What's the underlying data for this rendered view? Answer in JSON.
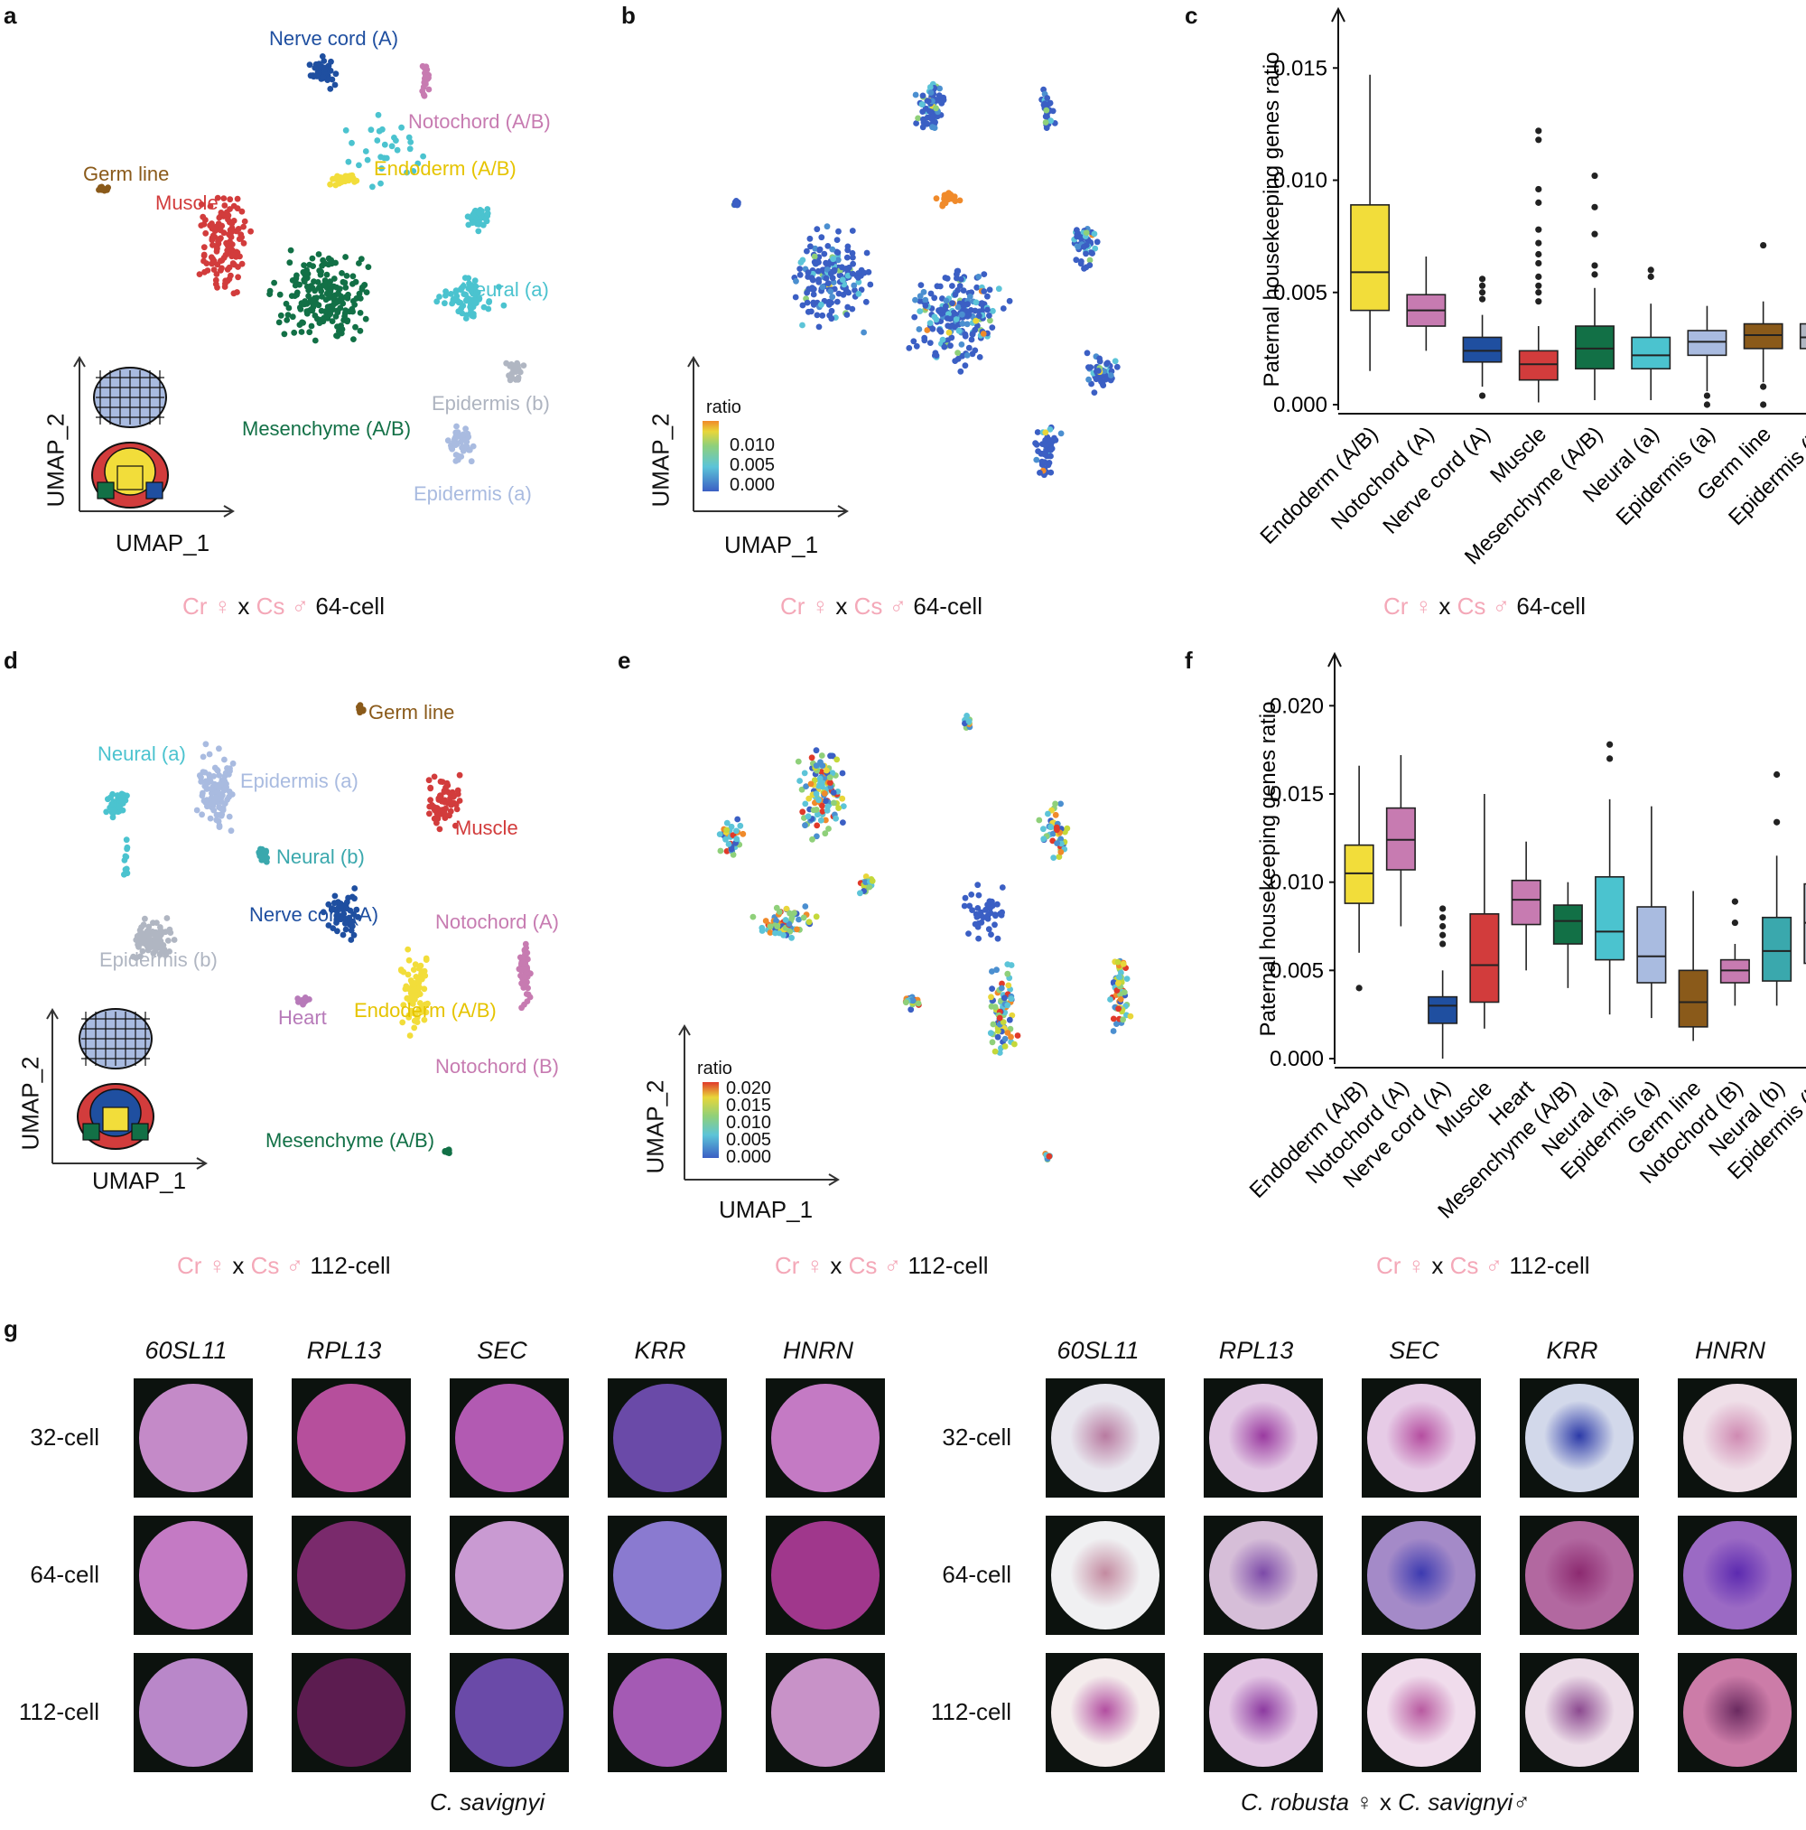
{
  "panels": {
    "a": "a",
    "b": "b",
    "c": "c",
    "d": "d",
    "e": "e",
    "f": "f",
    "g": "g"
  },
  "umap_axes": {
    "x": "UMAP_1",
    "y": "UMAP_2"
  },
  "captions": {
    "cr": "Cr",
    "female": "♀",
    "x": "x",
    "cs": "Cs",
    "male": "♂",
    "stage_64": "64-cell",
    "stage_112": "112-cell"
  },
  "panel_a_labels": {
    "nerve_cord": "Nerve cord (A)",
    "notochord": "Notochord (A/B)",
    "germ_line": "Germ line",
    "endoderm": "Endoderm (A/B)",
    "muscle": "Muscle",
    "neural_a": "Neural (a)",
    "mesenchyme": "Mesenchyme (A/B)",
    "epidermis_b": "Epidermis (b)",
    "epidermis_a": "Epidermis (a)"
  },
  "panel_d_labels": {
    "germ_line": "Germ line",
    "neural_a": "Neural (a)",
    "epidermis_a": "Epidermis (a)",
    "muscle": "Muscle",
    "neural_b": "Neural (b)",
    "nerve_cord": "Nerve cord (A)",
    "notochord_a": "Notochord (A)",
    "epidermis_b": "Epidermis (b)",
    "heart": "Heart",
    "endoderm": "Endoderm (A/B)",
    "notochord_b": "Notochord (B)",
    "mesenchyme": "Mesenchyme (A/B)"
  },
  "colorbar_b": {
    "title": "ratio",
    "ticks": [
      "0.010",
      "0.005",
      "0.000"
    ]
  },
  "colorbar_e": {
    "title": "ratio",
    "ticks": [
      "0.020",
      "0.015",
      "0.010",
      "0.005",
      "0.000"
    ]
  },
  "colors": {
    "endoderm": "#f2dd3a",
    "notochord": "#c77bb1",
    "nerve_cord": "#1f4fa0",
    "muscle": "#d23c3c",
    "mesenchyme": "#127046",
    "neural_a": "#4bc3cf",
    "neural_b": "#3aa8ad",
    "epidermis_a": "#a9bbe0",
    "epidermis_b": "#b0b6c2",
    "germ_line": "#8a5a1a",
    "heart": "#b77ab9"
  },
  "chart_data": [
    {
      "type": "box",
      "panel": "c",
      "ylabel": "Paternal housekeeping genes ratio",
      "ylim": [
        0,
        0.0165
      ],
      "yticks": [
        "0.000",
        "0.005",
        "0.010",
        "0.015"
      ],
      "categories": [
        "Endoderm (A/B)",
        "Notochord (A)",
        "Nerve cord (A)",
        "Muscle",
        "Mesenchyme (A/B)",
        "Neural (a)",
        "Epidermis (a)",
        "Germ line",
        "Epidermis (b)"
      ],
      "colors": [
        "#f2dd3a",
        "#c77bb1",
        "#1f4fa0",
        "#d23c3c",
        "#127046",
        "#4bc3cf",
        "#a9bbe0",
        "#8a5a1a",
        "#b0b6c2"
      ],
      "boxes": [
        {
          "min": 0.0015,
          "q1": 0.0042,
          "median": 0.0059,
          "q3": 0.0089,
          "max": 0.0147,
          "outliers": []
        },
        {
          "min": 0.0024,
          "q1": 0.0035,
          "median": 0.0042,
          "q3": 0.0049,
          "max": 0.0066,
          "outliers": []
        },
        {
          "min": 0.0008,
          "q1": 0.0019,
          "median": 0.0024,
          "q3": 0.003,
          "max": 0.004,
          "outliers": [
            0.0056,
            0.0053,
            0.005,
            0.0047,
            0.0004
          ]
        },
        {
          "min": 0.0001,
          "q1": 0.0011,
          "median": 0.0018,
          "q3": 0.0024,
          "max": 0.0035,
          "outliers": [
            0.0122,
            0.0118,
            0.0096,
            0.009,
            0.0078,
            0.0072,
            0.0067,
            0.0063,
            0.0057,
            0.0053,
            0.005,
            0.0046
          ]
        },
        {
          "min": 0.0002,
          "q1": 0.0016,
          "median": 0.0025,
          "q3": 0.0035,
          "max": 0.0052,
          "outliers": [
            0.0102,
            0.0088,
            0.0076,
            0.0062,
            0.0058
          ]
        },
        {
          "min": 0.0002,
          "q1": 0.0016,
          "median": 0.0022,
          "q3": 0.003,
          "max": 0.0045,
          "outliers": [
            0.006,
            0.0057
          ]
        },
        {
          "min": 0.0006,
          "q1": 0.0022,
          "median": 0.0028,
          "q3": 0.0033,
          "max": 0.0044,
          "outliers": [
            0.0004,
            0.0
          ]
        },
        {
          "min": 0.001,
          "q1": 0.0025,
          "median": 0.0031,
          "q3": 0.0036,
          "max": 0.0046,
          "outliers": [
            0.0071,
            0.0008,
            0.0
          ]
        },
        {
          "min": 0.0015,
          "q1": 0.0025,
          "median": 0.003,
          "q3": 0.0036,
          "max": 0.0047,
          "outliers": []
        }
      ]
    },
    {
      "type": "box",
      "panel": "f",
      "ylabel": "Paternal housekeeping genes ratio",
      "ylim": [
        0,
        0.0215
      ],
      "yticks": [
        "0.000",
        "0.005",
        "0.010",
        "0.015",
        "0.020"
      ],
      "categories": [
        "Endoderm (A/B)",
        "Notochord (A)",
        "Nerve cord (A)",
        "Muscle",
        "Heart",
        "Mesenchyme (A/B)",
        "Neural (a)",
        "Epidermis (a)",
        "Germ line",
        "Notochord (B)",
        "Neural (b)",
        "Epidermis (b)"
      ],
      "colors": [
        "#f2dd3a",
        "#c77bb1",
        "#1f4fa0",
        "#d23c3c",
        "#c77bb1",
        "#127046",
        "#4bc3cf",
        "#a9bbe0",
        "#8a5a1a",
        "#c77bb1",
        "#3aa8ad",
        "#b0b6c2"
      ],
      "boxes": [
        {
          "min": 0.006,
          "q1": 0.0088,
          "median": 0.0105,
          "q3": 0.0121,
          "max": 0.0166,
          "outliers": [
            0.004
          ]
        },
        {
          "min": 0.0075,
          "q1": 0.0107,
          "median": 0.0124,
          "q3": 0.0142,
          "max": 0.0172,
          "outliers": []
        },
        {
          "min": 0.0,
          "q1": 0.002,
          "median": 0.003,
          "q3": 0.0035,
          "max": 0.005,
          "outliers": [
            0.0085,
            0.008,
            0.0075,
            0.007,
            0.0065
          ]
        },
        {
          "min": 0.0017,
          "q1": 0.0032,
          "median": 0.0053,
          "q3": 0.0082,
          "max": 0.015,
          "outliers": []
        },
        {
          "min": 0.005,
          "q1": 0.0076,
          "median": 0.009,
          "q3": 0.0101,
          "max": 0.0123,
          "outliers": []
        },
        {
          "min": 0.004,
          "q1": 0.0065,
          "median": 0.0078,
          "q3": 0.0087,
          "max": 0.01,
          "outliers": []
        },
        {
          "min": 0.0025,
          "q1": 0.0056,
          "median": 0.0072,
          "q3": 0.0103,
          "max": 0.0147,
          "outliers": [
            0.0178,
            0.017
          ]
        },
        {
          "min": 0.0023,
          "q1": 0.0043,
          "median": 0.0058,
          "q3": 0.0086,
          "max": 0.0143,
          "outliers": []
        },
        {
          "min": 0.001,
          "q1": 0.0018,
          "median": 0.0032,
          "q3": 0.005,
          "max": 0.0095,
          "outliers": []
        },
        {
          "min": 0.003,
          "q1": 0.0043,
          "median": 0.005,
          "q3": 0.0056,
          "max": 0.0065,
          "outliers": [
            0.0089,
            0.0077
          ]
        },
        {
          "min": 0.003,
          "q1": 0.0044,
          "median": 0.0061,
          "q3": 0.008,
          "max": 0.0115,
          "outliers": [
            0.0161,
            0.0134
          ]
        },
        {
          "min": 0.002,
          "q1": 0.0054,
          "median": 0.0077,
          "q3": 0.0099,
          "max": 0.0133,
          "outliers": []
        }
      ]
    }
  ],
  "panel_g": {
    "genes": [
      "60SL11",
      "RPL13",
      "SEC",
      "KRR",
      "HNRN"
    ],
    "stages": [
      "32-cell",
      "64-cell",
      "112-cell"
    ],
    "species_left": "C. savignyi",
    "species_right_a": "C. robusta",
    "species_right_female": "♀",
    "species_right_x": "x",
    "species_right_b": "C. savignyi",
    "species_right_male": "♂",
    "left_colors": [
      [
        "#c48ac8",
        "#b64f9c",
        "#b25ab2",
        "#6a4aa8",
        "#c47ac4"
      ],
      [
        "#c47ac4",
        "#7a2a6c",
        "#c99ad2",
        "#8a7ad0",
        "#a0378c"
      ],
      [
        "#b987c9",
        "#5c1c50",
        "#6a4aa8",
        "#a45ab4",
        "#c892c8"
      ]
    ],
    "right_colors": [
      [
        "#e8e6ee",
        "#e2c8e4",
        "#e6cbe6",
        "#d2d8ea",
        "#efdfe8"
      ],
      [
        "#f0f0f2",
        "#d6bed8",
        "#a48ac8",
        "#b268a0",
        "#9b6ac4"
      ],
      [
        "#f4ecec",
        "#e3c6e4",
        "#f0dcec",
        "#ecdce8",
        "#cc7ca8"
      ]
    ],
    "right_center_colors": [
      [
        "#b87aa0",
        "#9a3aa0",
        "#b54ea0",
        "#2c3aa8",
        "#cf8ab2"
      ],
      [
        "#c38aa0",
        "#7c4aa8",
        "#3c3ab0",
        "#8c2a70",
        "#5c2ab0"
      ],
      [
        "#b24ea0",
        "#8c3aa0",
        "#b85aa0",
        "#8c4a90",
        "#6a2a60"
      ]
    ]
  }
}
